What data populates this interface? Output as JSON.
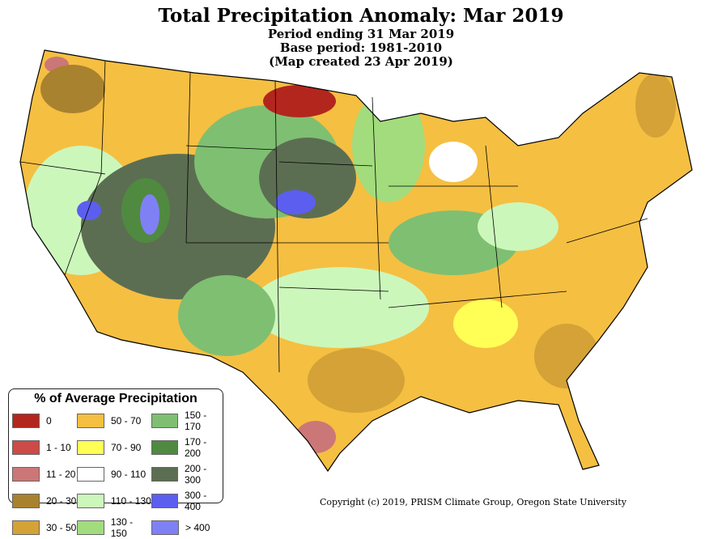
{
  "title": "Total Precipitation Anomaly: Mar 2019",
  "subtitle_lines": [
    "Period ending 31 Mar 2019",
    "Base period: 1981-2010",
    "(Map created 23 Apr 2019)"
  ],
  "legend": {
    "title": "% of Average Precipitation",
    "items": [
      {
        "label": "0",
        "color": "#b3261e"
      },
      {
        "label": "1 - 10",
        "color": "#cc4b47"
      },
      {
        "label": "11 - 20",
        "color": "#cc7777"
      },
      {
        "label": "20 - 30",
        "color": "#a8822e"
      },
      {
        "label": "30 - 50",
        "color": "#d4a236"
      },
      {
        "label": "50 - 70",
        "color": "#f5bf42"
      },
      {
        "label": "70 - 90",
        "color": "#ffff55"
      },
      {
        "label": "90 - 110",
        "color": "#ffffff"
      },
      {
        "label": "110 - 130",
        "color": "#ccf7bb"
      },
      {
        "label": "130 - 150",
        "color": "#a2dc7c"
      },
      {
        "label": "150 - 170",
        "color": "#7fbf72"
      },
      {
        "label": "170 - 200",
        "color": "#4f8a40"
      },
      {
        "label": "200 - 300",
        "color": "#5c6e52"
      },
      {
        "label": "300 - 400",
        "color": "#5c5ef0"
      },
      {
        "label": "> 400",
        "color": "#8080f5"
      }
    ]
  },
  "copyright": "Copyright (c) 2019, PRISM Climate Group, Oregon State University"
}
